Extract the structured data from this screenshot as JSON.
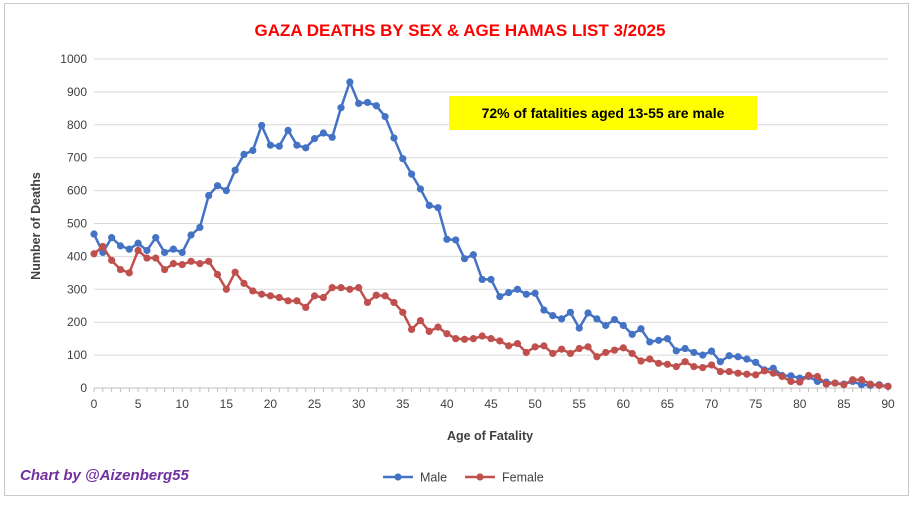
{
  "chart_data": {
    "type": "line",
    "title": "GAZA DEATHS BY SEX & AGE  HAMAS LIST 3/2025",
    "xlabel": "Age of Fatality",
    "ylabel": "Number of Deaths",
    "xlim": [
      0,
      90
    ],
    "ylim": [
      0,
      1000
    ],
    "xticks": [
      "0",
      "5",
      "10",
      "15",
      "20",
      "25",
      "30",
      "35",
      "40",
      "45",
      "50",
      "55",
      "60",
      "65",
      "70",
      "75",
      "80",
      "85",
      "90"
    ],
    "yticks": [
      "0",
      "100",
      "200",
      "300",
      "400",
      "500",
      "600",
      "700",
      "800",
      "900",
      "1000"
    ],
    "grid": "horizontal",
    "legend_position": "bottom",
    "annotation": "72% of fatalities aged 13-55 are male",
    "credit": "Chart by @Aizenberg55",
    "x": [
      0,
      1,
      2,
      3,
      4,
      5,
      6,
      7,
      8,
      9,
      10,
      11,
      12,
      13,
      14,
      15,
      16,
      17,
      18,
      19,
      20,
      21,
      22,
      23,
      24,
      25,
      26,
      27,
      28,
      29,
      30,
      31,
      32,
      33,
      34,
      35,
      36,
      37,
      38,
      39,
      40,
      41,
      42,
      43,
      44,
      45,
      46,
      47,
      48,
      49,
      50,
      51,
      52,
      53,
      54,
      55,
      56,
      57,
      58,
      59,
      60,
      61,
      62,
      63,
      64,
      65,
      66,
      67,
      68,
      69,
      70,
      71,
      72,
      73,
      74,
      75,
      76,
      77,
      78,
      79,
      80,
      81,
      82,
      83,
      84,
      85,
      86,
      87,
      88,
      89,
      90
    ],
    "series": [
      {
        "name": "Male",
        "color": "#4472c4",
        "values": [
          468,
          412,
          457,
          432,
          422,
          440,
          418,
          457,
          412,
          422,
          412,
          465,
          488,
          585,
          615,
          600,
          662,
          710,
          722,
          798,
          738,
          735,
          783,
          738,
          730,
          758,
          775,
          762,
          852,
          930,
          865,
          868,
          858,
          825,
          760,
          697,
          650,
          605,
          555,
          548,
          452,
          450,
          393,
          405,
          330,
          330,
          278,
          290,
          300,
          285,
          288,
          237,
          220,
          210,
          230,
          182,
          228,
          210,
          190,
          208,
          190,
          163,
          180,
          140,
          145,
          150,
          113,
          120,
          108,
          100,
          112,
          80,
          98,
          95,
          88,
          78,
          55,
          60,
          38,
          37,
          30,
          35,
          20,
          18,
          15,
          12,
          20,
          10,
          8,
          10,
          5
        ]
      },
      {
        "name": "Female",
        "color": "#c0504d",
        "values": [
          408,
          430,
          388,
          360,
          350,
          418,
          395,
          395,
          360,
          378,
          375,
          385,
          378,
          385,
          345,
          300,
          352,
          318,
          295,
          285,
          280,
          275,
          265,
          265,
          245,
          280,
          275,
          305,
          305,
          300,
          305,
          260,
          282,
          280,
          260,
          230,
          178,
          205,
          172,
          185,
          165,
          150,
          148,
          150,
          158,
          150,
          143,
          128,
          135,
          108,
          125,
          128,
          105,
          118,
          105,
          120,
          125,
          95,
          108,
          115,
          122,
          105,
          82,
          88,
          75,
          72,
          65,
          80,
          65,
          62,
          70,
          50,
          50,
          45,
          42,
          40,
          52,
          45,
          35,
          20,
          18,
          38,
          35,
          12,
          15,
          10,
          25,
          25,
          12,
          8,
          5
        ]
      }
    ]
  }
}
